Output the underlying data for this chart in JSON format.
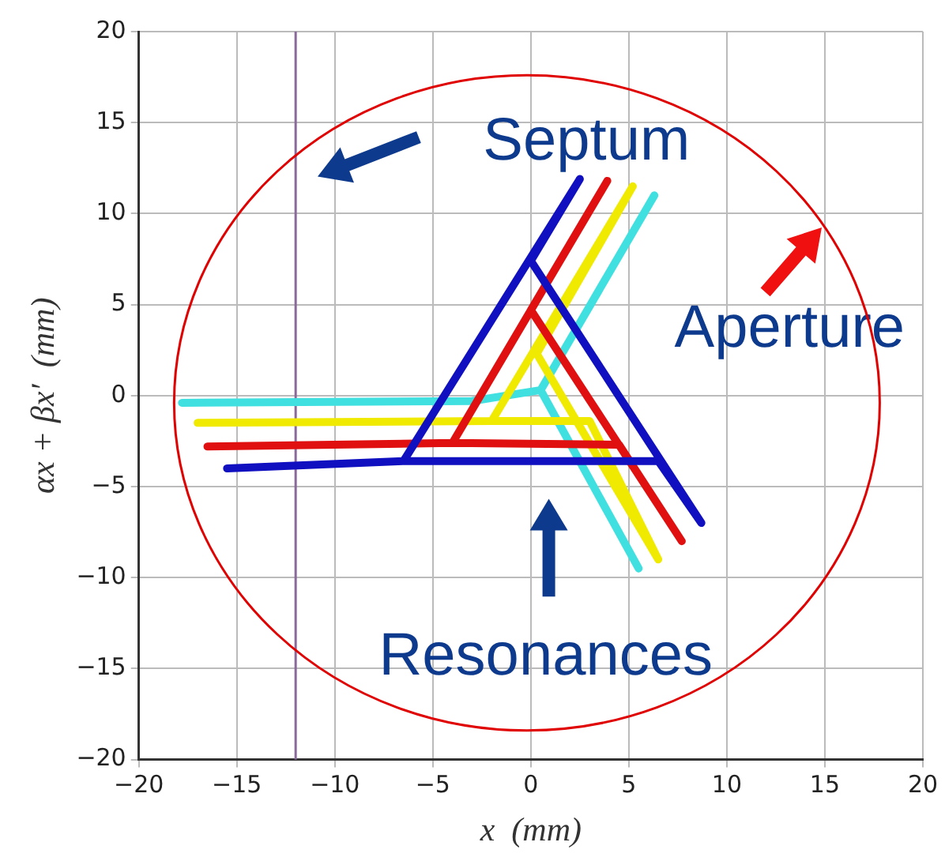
{
  "chart_data": {
    "type": "line",
    "xlabel": "x  (mm)",
    "ylabel": "αx + βx′  (mm)",
    "xlim": [
      -20,
      20
    ],
    "ylim": [
      -20,
      20
    ],
    "xticks": [
      -20,
      -15,
      -10,
      -5,
      0,
      5,
      10,
      15,
      20
    ],
    "yticks": [
      -20,
      -15,
      -10,
      -5,
      0,
      5,
      10,
      15,
      20
    ],
    "grid": true,
    "legend": false,
    "marker": "none",
    "line_style": "solid",
    "series": [
      {
        "color": "#1010c0",
        "x": [
          -15.5,
          -6.5,
          6.5,
          8.7,
          0,
          2.5,
          -6.5
        ],
        "values": [
          -4,
          -3.6,
          -3.6,
          -7,
          7.4,
          11.9,
          -3.6
        ]
      },
      {
        "color": "#e01010",
        "x": [
          -16.5,
          -4,
          4.5,
          7.7,
          0,
          3.9,
          -4
        ],
        "values": [
          -2.8,
          -2.6,
          -2.7,
          -8,
          4.7,
          11.8,
          -2.6
        ]
      },
      {
        "color": "#f0ea00",
        "x": [
          -17,
          -2,
          3,
          6.5,
          0.3,
          5.2,
          -2
        ],
        "values": [
          -1.5,
          -1.4,
          -1.4,
          -9,
          2.3,
          11.5,
          -1.4
        ]
      },
      {
        "color": "#40e0e0",
        "x": [
          -17.8,
          -3,
          0.5,
          5.5,
          0.5,
          6.3
        ],
        "values": [
          -0.4,
          -0.3,
          0.3,
          -9.5,
          0.3,
          11
        ]
      }
    ],
    "ref_lines": [
      {
        "axis": "x",
        "value": -12,
        "color": "#8a6a9a"
      }
    ],
    "annotations": [
      "Septum",
      "Aperture",
      "Resonances"
    ]
  }
}
